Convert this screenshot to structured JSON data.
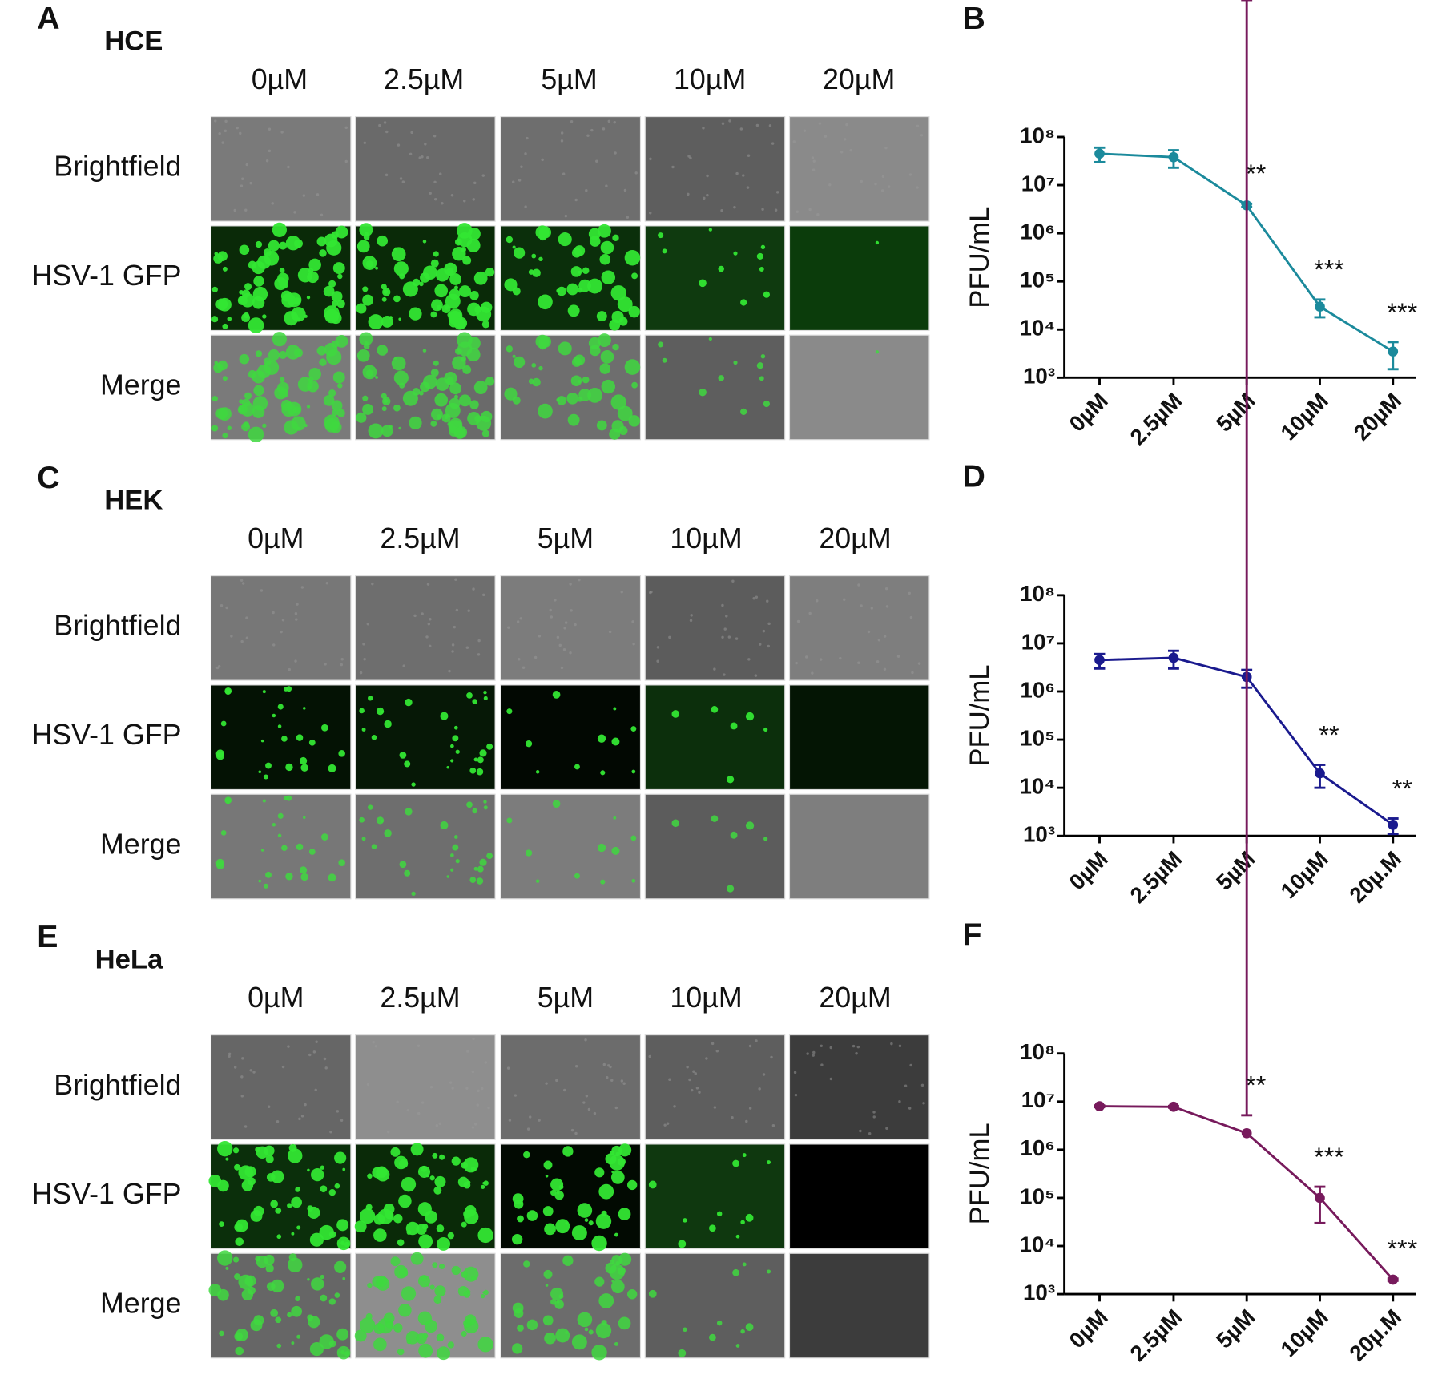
{
  "image_panels": [
    {
      "panel_label": "A",
      "cell_line": "HCE",
      "concentrations": [
        "0µM",
        "2.5µM",
        "5µM",
        "10µM",
        "20µM"
      ],
      "rows": [
        "Brightfield",
        "HSV-1 GFP",
        "Merge"
      ]
    },
    {
      "panel_label": "C",
      "cell_line": "HEK",
      "concentrations": [
        "0µM",
        "2.5µM",
        "5µM",
        "10µM",
        "20µM"
      ],
      "rows": [
        "Brightfield",
        "HSV-1 GFP",
        "Merge"
      ]
    },
    {
      "panel_label": "E",
      "cell_line": "HeLa",
      "concentrations": [
        "0µM",
        "2.5µM",
        "5µM",
        "10µM",
        "20µM"
      ],
      "rows": [
        "Brightfield",
        "HSV-1 GFP",
        "Merge"
      ]
    }
  ],
  "chart_data": [
    {
      "type": "line",
      "panel_label": "B",
      "ylabel": "PFU/mL",
      "log_scale": true,
      "categories": [
        "0µM",
        "2.5µM",
        "5µM",
        "10µM",
        "20µM"
      ],
      "values": [
        45000000,
        38000000,
        3800000,
        30000,
        3500
      ],
      "errors": [
        15000000,
        15000000,
        300000,
        12000,
        2000
      ],
      "significance": [
        null,
        null,
        "**",
        "***",
        "***"
      ],
      "color": "#1b8a9c",
      "ylim": [
        1000,
        100000000
      ],
      "yticks": [
        {
          "value": 1000,
          "label": "10³"
        },
        {
          "value": 10000,
          "label": "10⁴"
        },
        {
          "value": 100000,
          "label": "10⁵"
        },
        {
          "value": 1000000,
          "label": "10⁶"
        },
        {
          "value": 10000000,
          "label": "10⁷"
        },
        {
          "value": 100000000,
          "label": "10⁸"
        }
      ]
    },
    {
      "type": "line",
      "panel_label": "D",
      "ylabel": "PFU/mL",
      "log_scale": true,
      "categories": [
        "0µM",
        "2.5µM",
        "5µM",
        "10µM",
        "20µ.M"
      ],
      "values": [
        4500000,
        5000000,
        2000000,
        20000,
        1700
      ],
      "errors": [
        1500000,
        2000000,
        800000,
        10000,
        600
      ],
      "significance": [
        null,
        null,
        null,
        "**",
        "**"
      ],
      "color": "#1a1a8e",
      "ylim": [
        1000,
        100000000
      ],
      "yticks": [
        {
          "value": 1000,
          "label": "10³"
        },
        {
          "value": 10000,
          "label": "10⁴"
        },
        {
          "value": 100000,
          "label": "10⁵"
        },
        {
          "value": 1000000,
          "label": "10⁶"
        },
        {
          "value": 10000000,
          "label": "10⁷"
        },
        {
          "value": 100000000,
          "label": "10⁸"
        }
      ]
    },
    {
      "type": "line",
      "panel_label": "F",
      "ylabel": "PFU/mL",
      "log_scale": true,
      "categories": [
        "0µM",
        "2.5µM",
        "5µM",
        "10µM",
        "20µ.M"
      ],
      "values": [
        8000000,
        7800000,
        2200000,
        100000,
        2000
      ],
      "errors": [
        300000,
        300000,
        3000000,
        70000,
        100
      ],
      "significance": [
        null,
        null,
        "**",
        "***",
        "***"
      ],
      "color": "#771a5c",
      "ylim": [
        1000,
        100000000
      ],
      "yticks": [
        {
          "value": 1000,
          "label": "10³"
        },
        {
          "value": 10000,
          "label": "10⁴"
        },
        {
          "value": 100000,
          "label": "10⁵"
        },
        {
          "value": 1000000,
          "label": "10⁶"
        },
        {
          "value": 10000000,
          "label": "10⁷"
        },
        {
          "value": 100000000,
          "label": "10⁸"
        }
      ]
    }
  ]
}
